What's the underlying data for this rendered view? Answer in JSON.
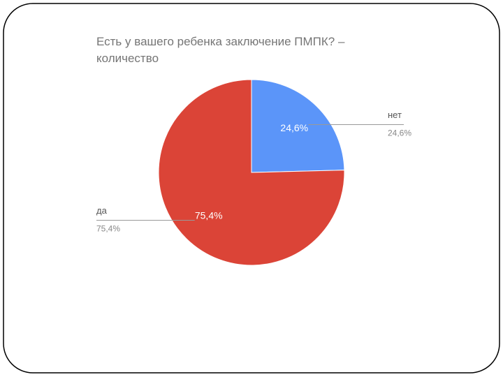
{
  "chart_data": {
    "type": "pie",
    "title": "Есть у вашего ребенка заключение ПМПК? – количество",
    "categories": [
      "нет",
      "да"
    ],
    "values": [
      24.6,
      75.4
    ],
    "value_labels": [
      "24,6%",
      "75,4%"
    ],
    "colors": [
      "#5b95f9",
      "#db4437"
    ]
  }
}
